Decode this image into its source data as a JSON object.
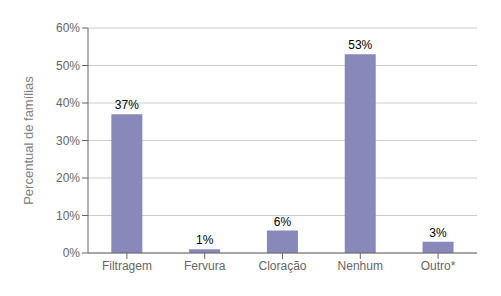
{
  "chart_data": {
    "type": "bar",
    "ylabel": "Percentual de famílias",
    "categories": [
      "Filtragem",
      "Fervura",
      "Cloração",
      "Nenhum",
      "Outro*"
    ],
    "values": [
      37,
      1,
      6,
      53,
      3
    ],
    "value_labels": [
      "37%",
      "1%",
      "6%",
      "53%",
      "3%"
    ],
    "data_labels": true,
    "color": "#8888bb",
    "ylim": [
      0,
      60
    ],
    "yticks": [
      {
        "value": 0,
        "label": "0%"
      },
      {
        "value": 10,
        "label": "10%"
      },
      {
        "value": 20,
        "label": "20%"
      },
      {
        "value": 30,
        "label": "30%"
      },
      {
        "value": 40,
        "label": "40%"
      },
      {
        "value": 50,
        "label": "50%"
      },
      {
        "value": 60,
        "label": "60%"
      }
    ],
    "grid": true
  }
}
